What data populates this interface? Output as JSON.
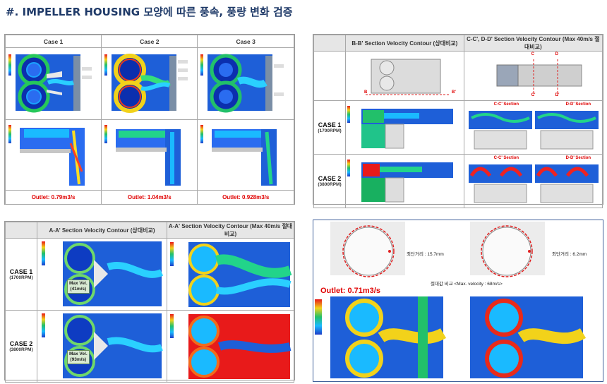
{
  "title": "#. IMPELLER HOUSING 모양에 따른 풍속, 풍량 변화 검증",
  "panel1": {
    "headers": [
      "Case 1",
      "Case 2",
      "Case 3"
    ],
    "outlets": [
      "Outlet: 0.79m3/s",
      "Outlet: 1.04m3/s",
      "Outlet: 0.928m3/s"
    ]
  },
  "panel2": {
    "headers": [
      "B-B' Section Velocity Contour (상대비교)",
      "C-C', D-D' Section Velocity Contour (Max 40m/s 절대비교)"
    ],
    "rows": [
      {
        "label": "CASE 1",
        "sub": "(1700RPM)"
      },
      {
        "label": "CASE 2",
        "sub": "(3800RPM)"
      }
    ],
    "section_c": "C-C' Section",
    "section_d": "D-D' Section",
    "marks": {
      "b": "B",
      "b2": "B'",
      "c": "C",
      "c2": "C'",
      "d": "D",
      "d2": "D'"
    }
  },
  "panel3": {
    "headers": [
      "A-A' Section Velocity Contour (상대비교)",
      "A-A' Section Velocity Contour (Max 40m/s 절대비교)"
    ],
    "rows": [
      {
        "label": "CASE 1",
        "sub": "(1700RPM)",
        "maxvel": "Max Vel.",
        "maxval": "(41m/s)"
      },
      {
        "label": "CASE 2",
        "sub": "(3800RPM)",
        "maxvel": "Max Vel.",
        "maxval": "(93m/s)"
      }
    ]
  },
  "panel4": {
    "dist1": "최단거리 : 15.7mm",
    "dist2": "최단거리 : 6.2mm",
    "outlet": "Outlet: 0.71m3/s",
    "compare": "절대값 비교 <Max. velocity : 68m/s>"
  }
}
